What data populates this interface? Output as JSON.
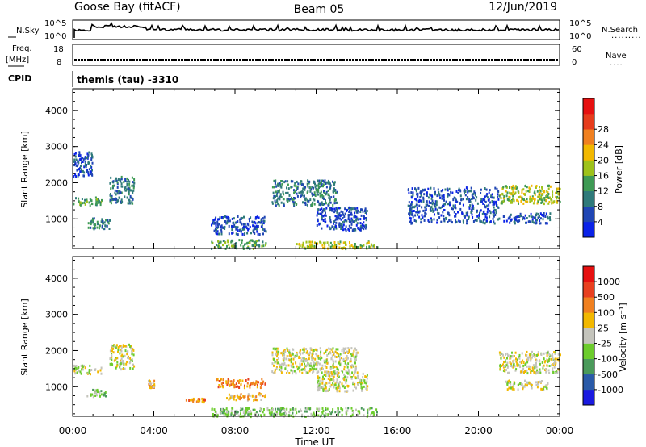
{
  "header": {
    "station": "Goose Bay (fitACF)",
    "beam": "Beam 05",
    "date": "12/Jun/2019",
    "cpid_label": "CPID",
    "cpid_value": "themis (tau) -3310"
  },
  "noise_panel": {
    "left_label": "N.Sky",
    "right_label": "N.Search",
    "ytick_top": "10^5",
    "ytick_bottom": "10^0",
    "right_tick_top": "10^5",
    "right_tick_bottom": "10^0"
  },
  "freq_panel": {
    "left_label_1": "Freq.",
    "left_label_2": "[MHz]",
    "right_label": "Nave",
    "left_tick_top": "18",
    "left_tick_bottom": "8",
    "right_tick_top": "60",
    "right_tick_bottom": "0"
  },
  "xaxis": {
    "label": "Time UT",
    "ticks": [
      "00:00",
      "04:00",
      "08:00",
      "12:00",
      "16:00",
      "20:00",
      "00:00"
    ]
  },
  "chart_data": [
    {
      "type": "heatmap",
      "name": "power",
      "ylabel": "Slant Range [km]",
      "ylim": [
        180,
        4600
      ],
      "yticks": [
        "1000",
        "2000",
        "3000",
        "4000"
      ],
      "xlim": [
        0,
        24
      ],
      "colorbar": {
        "label": "Power [dB]",
        "labels": [
          "4",
          "8",
          "12",
          "16",
          "20",
          "24",
          "28"
        ],
        "colors": [
          "#0a22e8",
          "#2046b4",
          "#2f7a7a",
          "#3e9a54",
          "#9ec21a",
          "#f2b800",
          "#f08020",
          "#e63c1c",
          "#e61010"
        ]
      },
      "blobs": [
        {
          "t0": 0.0,
          "t1": 1.4,
          "r0": 1380,
          "r1": 1620,
          "level": 3
        },
        {
          "t0": 0.6,
          "t1": 1.8,
          "r0": 750,
          "r1": 1050,
          "level": 2
        },
        {
          "t0": 1.8,
          "t1": 3.0,
          "r0": 1450,
          "r1": 2200,
          "level": 2
        },
        {
          "t0": 0.0,
          "t1": 1.0,
          "r0": 2200,
          "r1": 2900,
          "level": 1
        },
        {
          "t0": 6.8,
          "t1": 9.5,
          "r0": 600,
          "r1": 1100,
          "level": 1
        },
        {
          "t0": 6.8,
          "t1": 9.5,
          "r0": 200,
          "r1": 450,
          "level": 3
        },
        {
          "t0": 9.8,
          "t1": 13.0,
          "r0": 1400,
          "r1": 2100,
          "level": 2
        },
        {
          "t0": 12.0,
          "t1": 14.5,
          "r0": 700,
          "r1": 1350,
          "level": 1
        },
        {
          "t0": 11.0,
          "t1": 15.0,
          "r0": 200,
          "r1": 400,
          "level": 4
        },
        {
          "t0": 21.0,
          "t1": 24.0,
          "r0": 1450,
          "r1": 1950,
          "level": 4
        },
        {
          "t0": 21.2,
          "t1": 23.5,
          "r0": 900,
          "r1": 1200,
          "level": 1
        },
        {
          "t0": 16.5,
          "t1": 21.0,
          "r0": 900,
          "r1": 1900,
          "level": 1
        }
      ]
    },
    {
      "type": "heatmap",
      "name": "velocity",
      "ylabel": "Slant Range [km]",
      "ylim": [
        180,
        4600
      ],
      "yticks": [
        "1000",
        "2000",
        "3000",
        "4000"
      ],
      "xlim": [
        0,
        24
      ],
      "colorbar": {
        "label": "Velocity [m s⁻¹]",
        "labels": [
          "1000",
          "500",
          "100",
          "25",
          "-25",
          "-100",
          "-500",
          "-1000"
        ],
        "colors": [
          "#1a1ae0",
          "#2a5aa8",
          "#4a9a5a",
          "#6ccc2c",
          "#c4c4bc",
          "#f2b800",
          "#f08020",
          "#e84020",
          "#e61010"
        ]
      },
      "blobs": [
        {
          "t0": 0.0,
          "t1": 1.4,
          "r0": 1380,
          "r1": 1620,
          "level": 4
        },
        {
          "t0": 0.6,
          "t1": 1.6,
          "r0": 750,
          "r1": 950,
          "level": 3
        },
        {
          "t0": 1.8,
          "t1": 3.0,
          "r0": 1500,
          "r1": 2200,
          "level": 4
        },
        {
          "t0": 3.7,
          "t1": 4.0,
          "r0": 1000,
          "r1": 1200,
          "level": 5
        },
        {
          "t0": 5.5,
          "t1": 6.5,
          "r0": 600,
          "r1": 700,
          "level": 6
        },
        {
          "t0": 7.0,
          "t1": 9.5,
          "r0": 1000,
          "r1": 1250,
          "level": 6
        },
        {
          "t0": 7.5,
          "t1": 9.5,
          "r0": 650,
          "r1": 850,
          "level": 5
        },
        {
          "t0": 6.8,
          "t1": 15.0,
          "r0": 200,
          "r1": 450,
          "level": 3
        },
        {
          "t0": 9.8,
          "t1": 14.0,
          "r0": 1400,
          "r1": 2100,
          "level": 4
        },
        {
          "t0": 12.0,
          "t1": 14.5,
          "r0": 900,
          "r1": 1400,
          "level": 4
        },
        {
          "t0": 21.0,
          "t1": 24.0,
          "r0": 1400,
          "r1": 2000,
          "level": 4
        },
        {
          "t0": 21.2,
          "t1": 23.5,
          "r0": 950,
          "r1": 1200,
          "level": 4
        }
      ]
    }
  ]
}
